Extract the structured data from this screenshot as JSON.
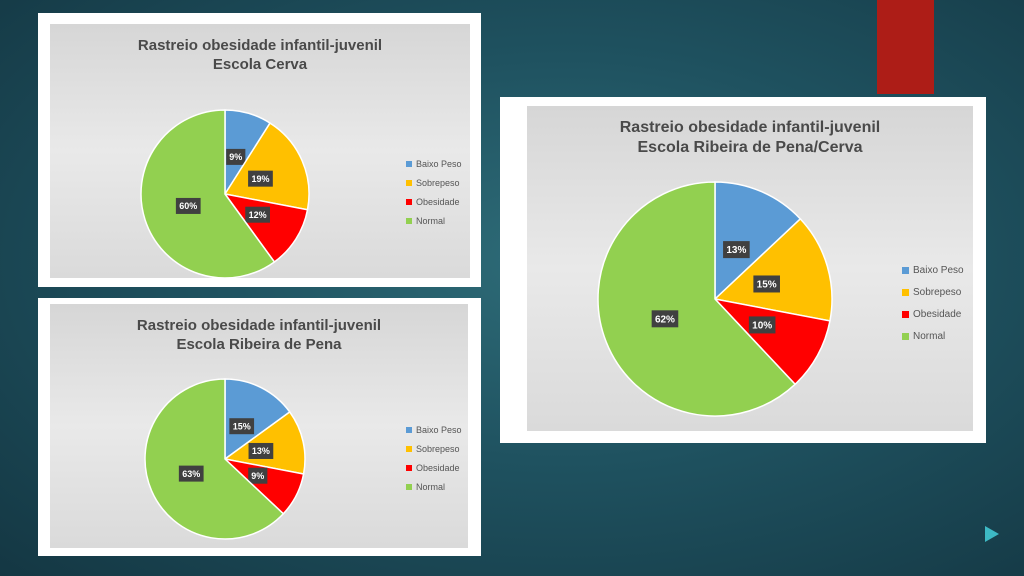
{
  "colors": {
    "baixo_peso": "#5b9bd5",
    "sobrepeso": "#ffc000",
    "obesidade": "#ff0000",
    "normal": "#92d050",
    "label_bg": "#404040"
  },
  "chart_data": [
    {
      "type": "pie",
      "title": "Rastreio obesidade infantil-juvenil",
      "subtitle": "Escola Cerva",
      "categories": [
        "Baixo Peso",
        "Sobrepeso",
        "Obesidade",
        "Normal"
      ],
      "values": [
        9,
        19,
        12,
        60
      ],
      "data_labels": [
        "9%",
        "19%",
        "12%",
        "60%"
      ],
      "legend_position": "right"
    },
    {
      "type": "pie",
      "title": "Rastreio obesidade infantil-juvenil",
      "subtitle": "Escola Ribeira de Pena",
      "categories": [
        "Baixo Peso",
        "Sobrepeso",
        "Obesidade",
        "Normal"
      ],
      "values": [
        15,
        13,
        9,
        63
      ],
      "data_labels": [
        "15%",
        "13%",
        "9%",
        "63%"
      ],
      "legend_position": "right"
    },
    {
      "type": "pie",
      "title": "Rastreio obesidade infantil-juvenil",
      "subtitle": "Escola Ribeira de Pena/Cerva",
      "categories": [
        "Baixo Peso",
        "Sobrepeso",
        "Obesidade",
        "Normal"
      ],
      "values": [
        13,
        15,
        10,
        62
      ],
      "data_labels": [
        "13%",
        "15%",
        "10%",
        "62%"
      ],
      "legend_position": "right"
    }
  ]
}
